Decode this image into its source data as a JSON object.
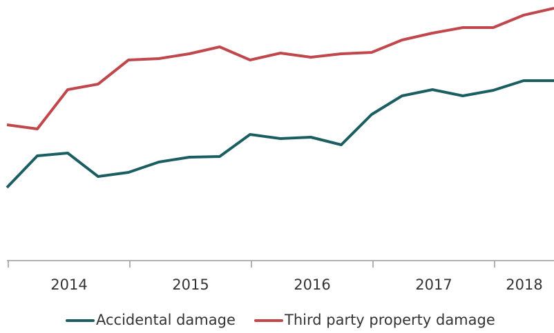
{
  "chart_data": {
    "type": "line",
    "categories": [
      null,
      null,
      null,
      null,
      null,
      null,
      null,
      null,
      null,
      null,
      null,
      null,
      null,
      null,
      null,
      null,
      null,
      null,
      null
    ],
    "year_labels": [
      "2014",
      "2015",
      "2016",
      "2017",
      "2018"
    ],
    "ylim": [
      0,
      380
    ],
    "legend": "bottom",
    "series": [
      {
        "name": "Accidental damage",
        "color": "#1b5e62",
        "values": [
          108,
          154,
          158,
          124,
          130,
          145,
          152,
          153,
          185,
          179,
          181,
          170,
          214,
          241,
          250,
          241,
          249,
          263,
          263
        ]
      },
      {
        "name": "Third party property damage",
        "color": "#c0474b",
        "values": [
          199,
          193,
          250,
          258,
          293,
          295,
          302,
          312,
          293,
          303,
          297,
          302,
          304,
          322,
          332,
          340,
          340,
          358,
          368
        ]
      }
    ]
  }
}
